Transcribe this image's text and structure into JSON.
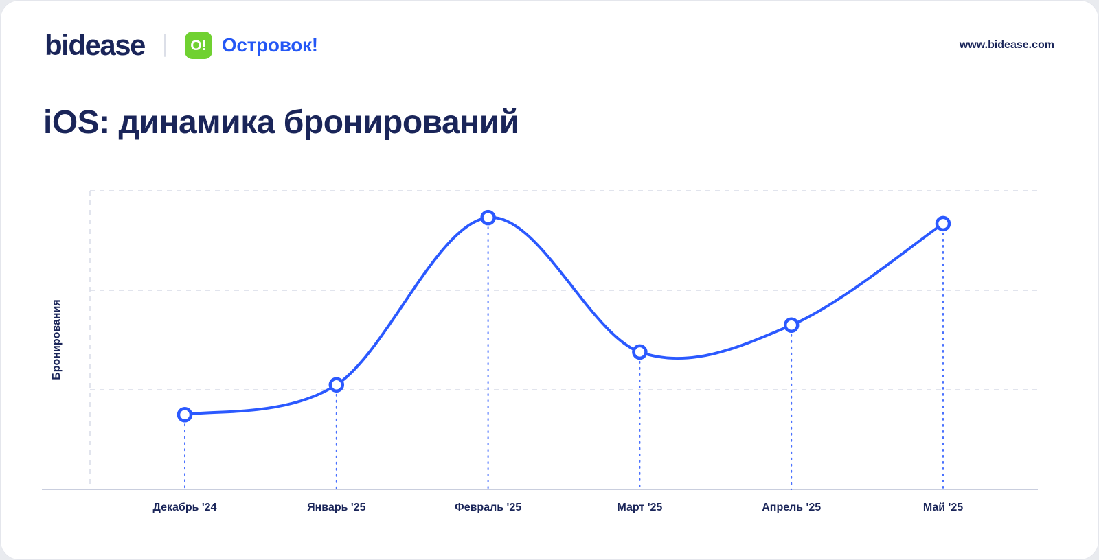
{
  "header": {
    "brand": "bidease",
    "partner_badge": "О!",
    "partner_name": "Островок!",
    "website": "www.bidease.com"
  },
  "title": "iOS: динамика бронирований",
  "chart_data": {
    "type": "line",
    "title": "iOS: динамика бронирований",
    "xlabel": "",
    "ylabel": "Бронирования",
    "categories": [
      "Декабрь '24",
      "Январь '25",
      "Февраль '25",
      "Март '25",
      "Апрель '25",
      "Май '25"
    ],
    "series": [
      {
        "name": "Бронирования",
        "values": [
          25,
          35,
          91,
          46,
          55,
          89
        ]
      }
    ],
    "ylim": [
      0,
      100
    ],
    "grid": "horizontal-dashed",
    "legend": "none",
    "marker_style": "open-circle",
    "drop_lines": "dashed-vertical",
    "colors": {
      "line": "#2b59ff",
      "marker_fill": "#ffffff",
      "grid": "#d7dbe7",
      "text": "#1a2559",
      "badge_green": "#70d131",
      "partner_blue": "#2457f5"
    }
  }
}
